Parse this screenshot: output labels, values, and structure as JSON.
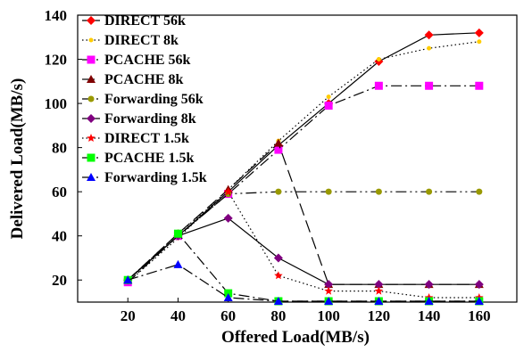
{
  "chart_data": {
    "type": "line",
    "xlabel": "Offered Load(MB/s)",
    "ylabel": "Delivered Load(MB/s)",
    "xlim": [
      0,
      175
    ],
    "ylim": [
      10,
      140
    ],
    "x": [
      20,
      40,
      60,
      80,
      100,
      120,
      140,
      160
    ],
    "x_ticks": [
      "20",
      "40",
      "60",
      "80",
      "100",
      "120",
      "140",
      "160"
    ],
    "y_ticks": [
      "20",
      "40",
      "60",
      "80",
      "100",
      "120",
      "140"
    ],
    "legend_position": "top-left",
    "grid": false,
    "series": [
      {
        "name": "DIRECT 56k",
        "color": "#ff0000",
        "marker": "diamond",
        "dash": "solid",
        "values": [
          20,
          40,
          60,
          81,
          100,
          119,
          131,
          132
        ]
      },
      {
        "name": "DIRECT 8k",
        "color": "#ffcc00",
        "marker": "dot",
        "dash": "dot",
        "values": [
          19,
          39,
          61,
          83,
          103,
          120,
          125,
          128
        ]
      },
      {
        "name": "PCACHE 56k",
        "color": "#ff00ff",
        "marker": "square",
        "dash": "dashdot",
        "values": [
          19,
          40,
          59,
          79,
          99,
          108,
          108,
          108
        ]
      },
      {
        "name": "PCACHE 8k",
        "color": "#800000",
        "marker": "triangle",
        "dash": "dash",
        "values": [
          20,
          41,
          61,
          82,
          18,
          18,
          18,
          18
        ]
      },
      {
        "name": "Forwarding 56k",
        "color": "#999900",
        "marker": "circle",
        "dash": "dashdotdot",
        "values": [
          20,
          40,
          59,
          60,
          60,
          60,
          60,
          60
        ]
      },
      {
        "name": "Forwarding 8k",
        "color": "#800080",
        "marker": "diamond",
        "dash": "solid",
        "values": [
          20,
          40,
          48,
          30,
          18,
          18,
          18,
          18
        ]
      },
      {
        "name": "DIRECT 1.5k",
        "color": "#ff0000",
        "marker": "star",
        "dash": "dot",
        "values": [
          20,
          41,
          60,
          22,
          15,
          15,
          12,
          12
        ]
      },
      {
        "name": "PCACHE 1.5k",
        "color": "#00ff00",
        "marker": "square",
        "dash": "dashdot",
        "values": [
          20,
          41,
          14,
          1,
          1,
          1,
          1,
          1
        ]
      },
      {
        "name": "Forwarding 1.5k",
        "color": "#0000ff",
        "marker": "triangle",
        "dash": "dashdot",
        "values": [
          20,
          27,
          12,
          1,
          3,
          5,
          1,
          3
        ]
      }
    ]
  }
}
